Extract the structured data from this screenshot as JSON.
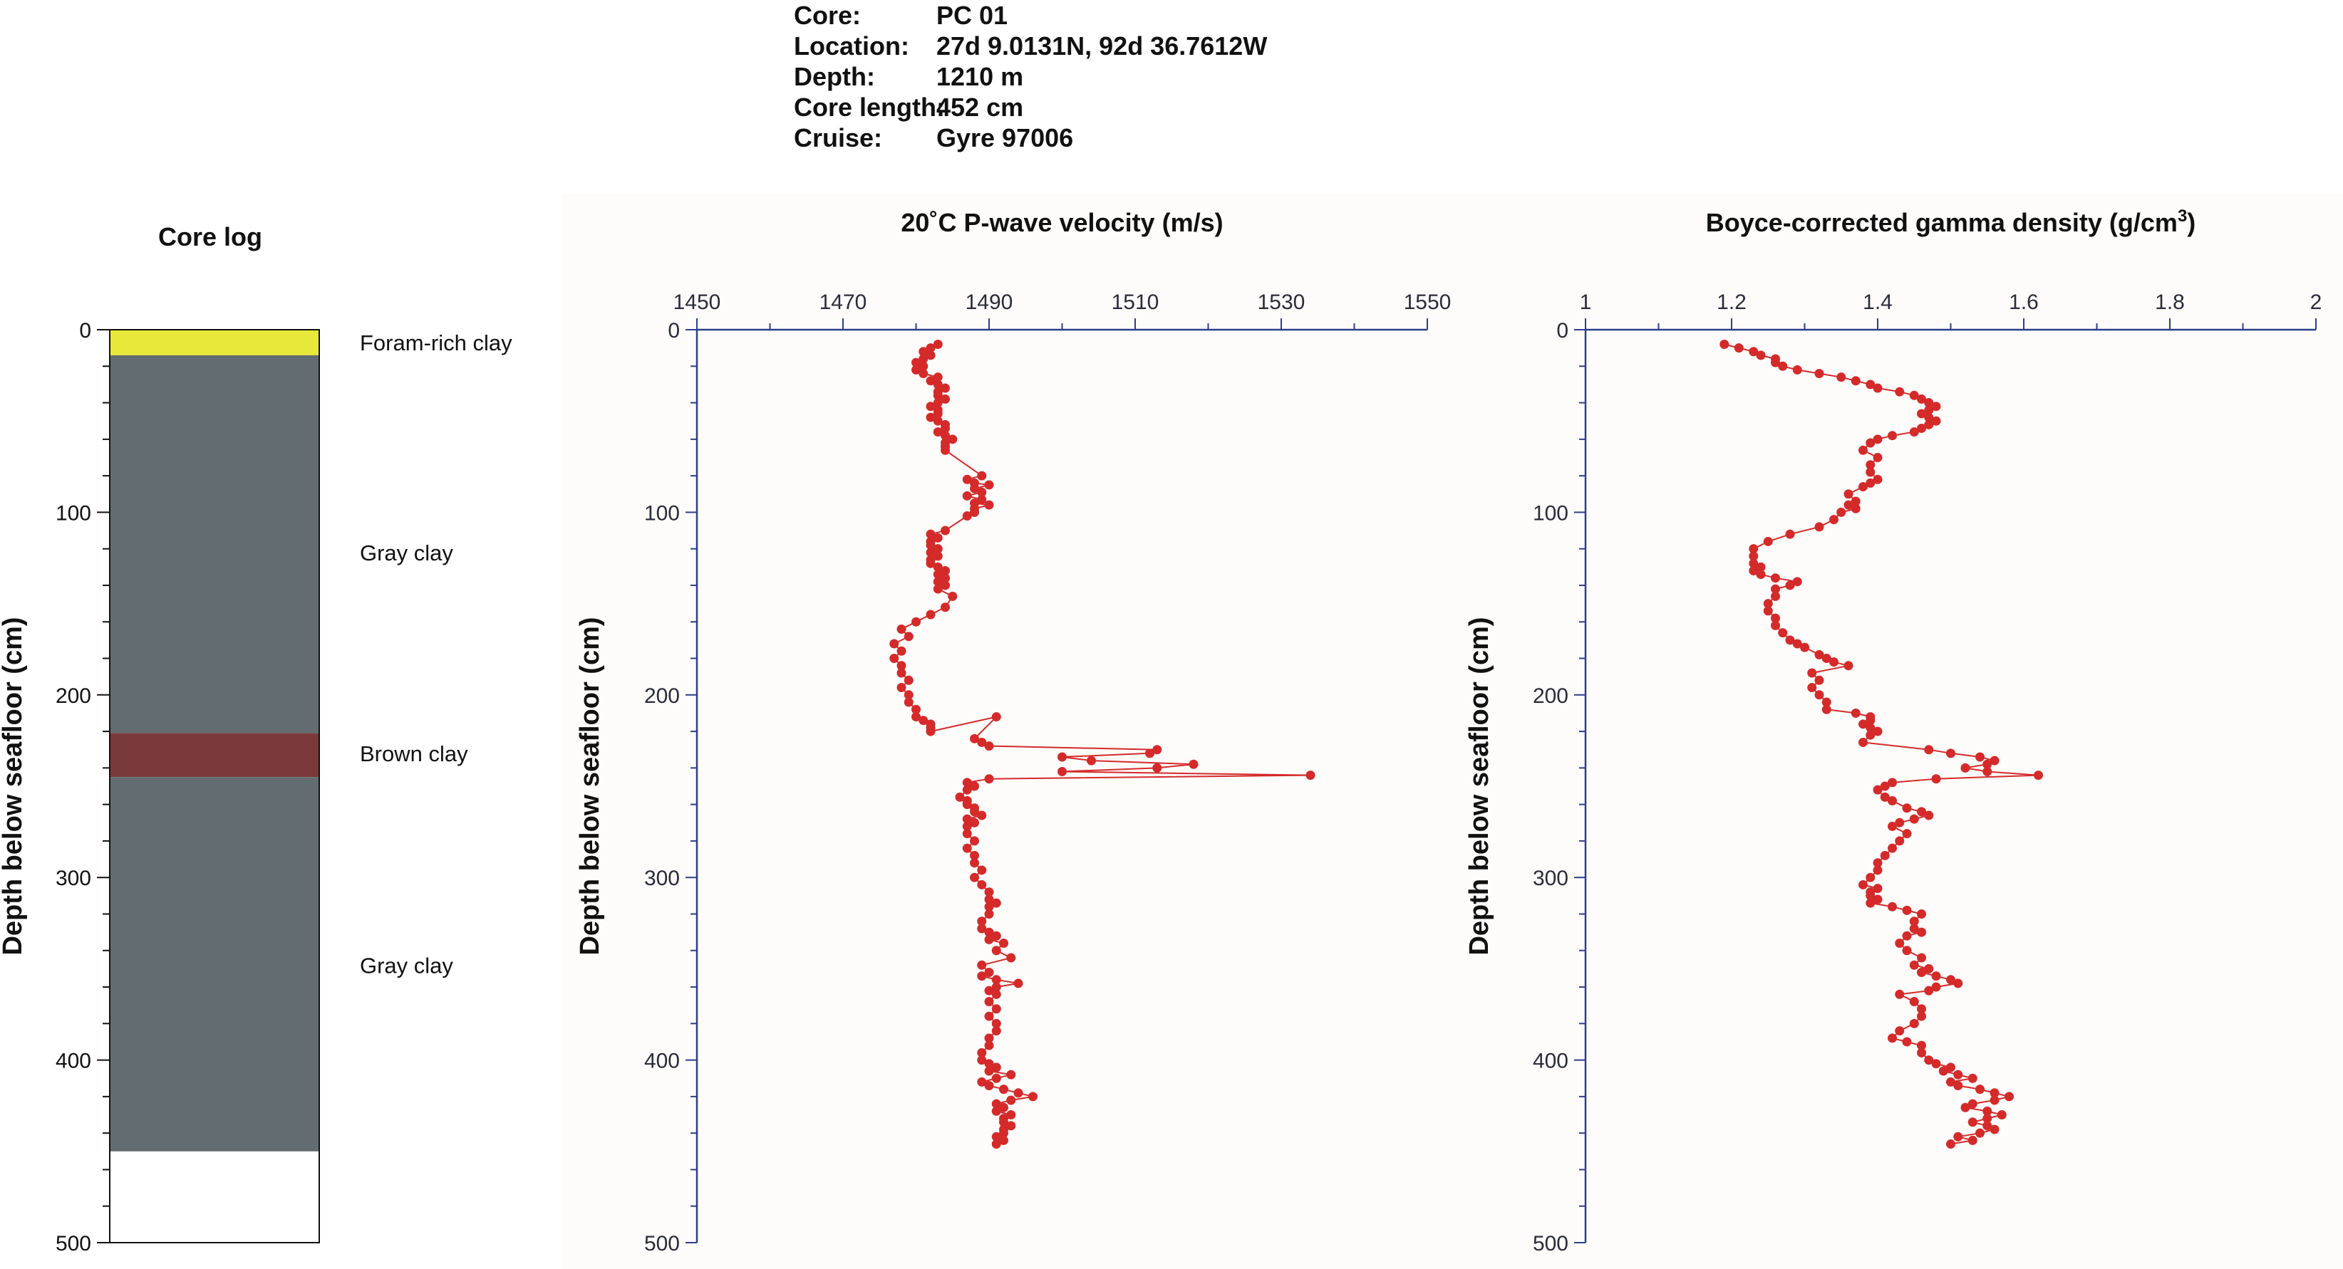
{
  "header": {
    "rows": [
      {
        "key": "Core:",
        "value": "PC 01"
      },
      {
        "key": "Location:",
        "value": "27d 9.0131N, 92d 36.7612W"
      },
      {
        "key": "Depth:",
        "value": "1210 m"
      },
      {
        "key": "Core length:",
        "value": "452 cm"
      },
      {
        "key": "Cruise:",
        "value": "Gyre 97006"
      }
    ]
  },
  "chart_data": [
    {
      "type": "table",
      "title": "Core log",
      "ylabel": "Depth below seafloor (cm)",
      "ylim": [
        0,
        500
      ],
      "yticks": [
        "0",
        "100",
        "200",
        "300",
        "400",
        "500"
      ],
      "units": [
        {
          "name": "Foram-rich clay",
          "top": 0,
          "bottom": 14,
          "color": "#e8e83a"
        },
        {
          "name": "Gray clay",
          "top": 14,
          "bottom": 221,
          "color": "#636c70"
        },
        {
          "name": "Brown clay",
          "top": 221,
          "bottom": 245,
          "color": "#7a3a3c"
        },
        {
          "name": "Gray clay",
          "top": 245,
          "bottom": 450,
          "color": "#636c70"
        }
      ],
      "unit_labels": [
        {
          "text": "Foram-rich clay",
          "depth": 7
        },
        {
          "text": "Gray clay",
          "depth": 122
        },
        {
          "text": "Brown clay",
          "depth": 232
        },
        {
          "text": "Gray clay",
          "depth": 348
        }
      ]
    },
    {
      "type": "line",
      "title": "20˚C P-wave velocity (m/s)",
      "ylabel": "Depth below seafloor (cm)",
      "xlim": [
        1450,
        1550
      ],
      "ylim": [
        0,
        500
      ],
      "xticks": [
        "1450",
        "1470",
        "1490",
        "1510",
        "1530",
        "1550"
      ],
      "yticks": [
        "0",
        "100",
        "200",
        "300",
        "400",
        "500"
      ],
      "color": "#d42a2a",
      "points": [
        [
          1483,
          8
        ],
        [
          1482,
          10
        ],
        [
          1481,
          12
        ],
        [
          1482,
          14
        ],
        [
          1481,
          16
        ],
        [
          1480,
          18
        ],
        [
          1481,
          20
        ],
        [
          1480,
          22
        ],
        [
          1481,
          24
        ],
        [
          1483,
          26
        ],
        [
          1482,
          28
        ],
        [
          1483,
          30
        ],
        [
          1484,
          32
        ],
        [
          1483,
          34
        ],
        [
          1483,
          36
        ],
        [
          1484,
          38
        ],
        [
          1483,
          40
        ],
        [
          1482,
          42
        ],
        [
          1483,
          44
        ],
        [
          1483,
          46
        ],
        [
          1482,
          48
        ],
        [
          1483,
          50
        ],
        [
          1484,
          52
        ],
        [
          1484,
          54
        ],
        [
          1483,
          56
        ],
        [
          1484,
          58
        ],
        [
          1485,
          60
        ],
        [
          1484,
          62
        ],
        [
          1484,
          64
        ],
        [
          1484,
          66
        ],
        [
          1489,
          80
        ],
        [
          1487,
          82
        ],
        [
          1488,
          84
        ],
        [
          1490,
          85
        ],
        [
          1488,
          87
        ],
        [
          1489,
          89
        ],
        [
          1487,
          91
        ],
        [
          1489,
          93
        ],
        [
          1488,
          95
        ],
        [
          1490,
          96
        ],
        [
          1488,
          98
        ],
        [
          1488,
          100
        ],
        [
          1487,
          102
        ],
        [
          1484,
          110
        ],
        [
          1482,
          112
        ],
        [
          1483,
          114
        ],
        [
          1482,
          116
        ],
        [
          1482,
          118
        ],
        [
          1483,
          120
        ],
        [
          1482,
          122
        ],
        [
          1483,
          124
        ],
        [
          1482,
          126
        ],
        [
          1482,
          128
        ],
        [
          1483,
          130
        ],
        [
          1484,
          132
        ],
        [
          1483,
          134
        ],
        [
          1484,
          136
        ],
        [
          1483,
          138
        ],
        [
          1484,
          140
        ],
        [
          1483,
          142
        ],
        [
          1485,
          146
        ],
        [
          1484,
          152
        ],
        [
          1482,
          156
        ],
        [
          1480,
          160
        ],
        [
          1478,
          164
        ],
        [
          1479,
          168
        ],
        [
          1477,
          172
        ],
        [
          1478,
          176
        ],
        [
          1477,
          180
        ],
        [
          1478,
          184
        ],
        [
          1478,
          188
        ],
        [
          1479,
          192
        ],
        [
          1478,
          196
        ],
        [
          1479,
          200
        ],
        [
          1479,
          204
        ],
        [
          1480,
          208
        ],
        [
          1480,
          212
        ],
        [
          1481,
          214
        ],
        [
          1482,
          216
        ],
        [
          1482,
          218
        ],
        [
          1482,
          220
        ],
        [
          1491,
          212
        ],
        [
          1488,
          224
        ],
        [
          1489,
          226
        ],
        [
          1490,
          228
        ],
        [
          1513,
          230
        ],
        [
          1512,
          232
        ],
        [
          1500,
          234
        ],
        [
          1504,
          236
        ],
        [
          1518,
          238
        ],
        [
          1513,
          240
        ],
        [
          1500,
          242
        ],
        [
          1534,
          244
        ],
        [
          1490,
          246
        ],
        [
          1487,
          248
        ],
        [
          1488,
          250
        ],
        [
          1487,
          252
        ],
        [
          1486,
          256
        ],
        [
          1487,
          258
        ],
        [
          1487,
          260
        ],
        [
          1488,
          262
        ],
        [
          1488,
          264
        ],
        [
          1489,
          266
        ],
        [
          1487,
          268
        ],
        [
          1488,
          270
        ],
        [
          1487,
          272
        ],
        [
          1487,
          276
        ],
        [
          1488,
          280
        ],
        [
          1487,
          284
        ],
        [
          1488,
          288
        ],
        [
          1488,
          292
        ],
        [
          1489,
          296
        ],
        [
          1488,
          300
        ],
        [
          1489,
          304
        ],
        [
          1490,
          308
        ],
        [
          1490,
          312
        ],
        [
          1491,
          314
        ],
        [
          1490,
          316
        ],
        [
          1490,
          320
        ],
        [
          1489,
          324
        ],
        [
          1489,
          328
        ],
        [
          1490,
          330
        ],
        [
          1491,
          332
        ],
        [
          1490,
          334
        ],
        [
          1492,
          336
        ],
        [
          1491,
          340
        ],
        [
          1493,
          344
        ],
        [
          1489,
          348
        ],
        [
          1490,
          352
        ],
        [
          1489,
          354
        ],
        [
          1491,
          356
        ],
        [
          1494,
          358
        ],
        [
          1491,
          360
        ],
        [
          1490,
          362
        ],
        [
          1491,
          364
        ],
        [
          1490,
          368
        ],
        [
          1491,
          372
        ],
        [
          1490,
          376
        ],
        [
          1491,
          380
        ],
        [
          1491,
          384
        ],
        [
          1490,
          388
        ],
        [
          1490,
          392
        ],
        [
          1489,
          396
        ],
        [
          1489,
          400
        ],
        [
          1490,
          402
        ],
        [
          1491,
          404
        ],
        [
          1490,
          406
        ],
        [
          1493,
          408
        ],
        [
          1491,
          410
        ],
        [
          1489,
          412
        ],
        [
          1490,
          414
        ],
        [
          1492,
          416
        ],
        [
          1494,
          418
        ],
        [
          1496,
          420
        ],
        [
          1493,
          422
        ],
        [
          1491,
          424
        ],
        [
          1492,
          426
        ],
        [
          1491,
          428
        ],
        [
          1493,
          430
        ],
        [
          1492,
          432
        ],
        [
          1492,
          434
        ],
        [
          1493,
          436
        ],
        [
          1492,
          438
        ],
        [
          1492,
          440
        ],
        [
          1491,
          442
        ],
        [
          1492,
          444
        ],
        [
          1491,
          446
        ]
      ]
    },
    {
      "type": "line",
      "title": "Boyce-corrected gamma density (g/cm",
      "title_sup": "3",
      "title_end": ")",
      "ylabel": "Depth below seafloor (cm)",
      "xlim": [
        1,
        2
      ],
      "ylim": [
        0,
        500
      ],
      "xticks": [
        "1",
        "1.2",
        "1.4",
        "1.6",
        "1.8",
        "2"
      ],
      "yticks": [
        "0",
        "100",
        "200",
        "300",
        "400",
        "500"
      ],
      "color": "#d42a2a",
      "points": [
        [
          1.19,
          8
        ],
        [
          1.21,
          10
        ],
        [
          1.23,
          12
        ],
        [
          1.24,
          14
        ],
        [
          1.26,
          16
        ],
        [
          1.26,
          18
        ],
        [
          1.27,
          20
        ],
        [
          1.29,
          22
        ],
        [
          1.32,
          24
        ],
        [
          1.35,
          26
        ],
        [
          1.37,
          28
        ],
        [
          1.39,
          30
        ],
        [
          1.4,
          32
        ],
        [
          1.43,
          34
        ],
        [
          1.45,
          36
        ],
        [
          1.46,
          38
        ],
        [
          1.47,
          40
        ],
        [
          1.48,
          42
        ],
        [
          1.47,
          44
        ],
        [
          1.46,
          46
        ],
        [
          1.47,
          48
        ],
        [
          1.48,
          50
        ],
        [
          1.47,
          52
        ],
        [
          1.46,
          54
        ],
        [
          1.45,
          56
        ],
        [
          1.42,
          58
        ],
        [
          1.4,
          60
        ],
        [
          1.39,
          62
        ],
        [
          1.38,
          66
        ],
        [
          1.4,
          70
        ],
        [
          1.39,
          74
        ],
        [
          1.39,
          78
        ],
        [
          1.4,
          82
        ],
        [
          1.39,
          84
        ],
        [
          1.38,
          86
        ],
        [
          1.36,
          90
        ],
        [
          1.37,
          94
        ],
        [
          1.36,
          96
        ],
        [
          1.37,
          98
        ],
        [
          1.35,
          100
        ],
        [
          1.34,
          104
        ],
        [
          1.32,
          108
        ],
        [
          1.28,
          112
        ],
        [
          1.25,
          116
        ],
        [
          1.23,
          120
        ],
        [
          1.23,
          124
        ],
        [
          1.23,
          128
        ],
        [
          1.24,
          130
        ],
        [
          1.23,
          132
        ],
        [
          1.24,
          134
        ],
        [
          1.26,
          136
        ],
        [
          1.29,
          138
        ],
        [
          1.28,
          140
        ],
        [
          1.26,
          142
        ],
        [
          1.26,
          146
        ],
        [
          1.25,
          150
        ],
        [
          1.25,
          154
        ],
        [
          1.26,
          158
        ],
        [
          1.26,
          162
        ],
        [
          1.27,
          166
        ],
        [
          1.28,
          170
        ],
        [
          1.29,
          172
        ],
        [
          1.3,
          174
        ],
        [
          1.32,
          178
        ],
        [
          1.33,
          180
        ],
        [
          1.34,
          182
        ],
        [
          1.36,
          184
        ],
        [
          1.31,
          188
        ],
        [
          1.32,
          192
        ],
        [
          1.31,
          196
        ],
        [
          1.32,
          200
        ],
        [
          1.33,
          204
        ],
        [
          1.33,
          208
        ],
        [
          1.37,
          210
        ],
        [
          1.39,
          212
        ],
        [
          1.39,
          214
        ],
        [
          1.38,
          216
        ],
        [
          1.39,
          218
        ],
        [
          1.4,
          220
        ],
        [
          1.39,
          222
        ],
        [
          1.38,
          226
        ],
        [
          1.47,
          230
        ],
        [
          1.5,
          232
        ],
        [
          1.54,
          234
        ],
        [
          1.56,
          236
        ],
        [
          1.55,
          238
        ],
        [
          1.52,
          240
        ],
        [
          1.55,
          242
        ],
        [
          1.62,
          244
        ],
        [
          1.48,
          246
        ],
        [
          1.42,
          248
        ],
        [
          1.41,
          250
        ],
        [
          1.4,
          252
        ],
        [
          1.41,
          256
        ],
        [
          1.42,
          258
        ],
        [
          1.44,
          262
        ],
        [
          1.46,
          264
        ],
        [
          1.47,
          266
        ],
        [
          1.45,
          268
        ],
        [
          1.43,
          270
        ],
        [
          1.42,
          272
        ],
        [
          1.44,
          276
        ],
        [
          1.43,
          280
        ],
        [
          1.42,
          284
        ],
        [
          1.41,
          288
        ],
        [
          1.4,
          292
        ],
        [
          1.4,
          296
        ],
        [
          1.39,
          300
        ],
        [
          1.38,
          304
        ],
        [
          1.4,
          306
        ],
        [
          1.39,
          308
        ],
        [
          1.39,
          310
        ],
        [
          1.4,
          312
        ],
        [
          1.39,
          314
        ],
        [
          1.42,
          316
        ],
        [
          1.44,
          318
        ],
        [
          1.46,
          320
        ],
        [
          1.45,
          324
        ],
        [
          1.45,
          328
        ],
        [
          1.46,
          330
        ],
        [
          1.44,
          332
        ],
        [
          1.43,
          336
        ],
        [
          1.44,
          340
        ],
        [
          1.46,
          344
        ],
        [
          1.45,
          348
        ],
        [
          1.47,
          350
        ],
        [
          1.46,
          352
        ],
        [
          1.48,
          354
        ],
        [
          1.5,
          356
        ],
        [
          1.51,
          358
        ],
        [
          1.48,
          360
        ],
        [
          1.47,
          362
        ],
        [
          1.43,
          364
        ],
        [
          1.45,
          368
        ],
        [
          1.46,
          372
        ],
        [
          1.46,
          376
        ],
        [
          1.45,
          380
        ],
        [
          1.43,
          384
        ],
        [
          1.42,
          388
        ],
        [
          1.44,
          390
        ],
        [
          1.46,
          392
        ],
        [
          1.46,
          396
        ],
        [
          1.47,
          400
        ],
        [
          1.48,
          402
        ],
        [
          1.5,
          404
        ],
        [
          1.49,
          406
        ],
        [
          1.51,
          408
        ],
        [
          1.53,
          410
        ],
        [
          1.5,
          412
        ],
        [
          1.51,
          414
        ],
        [
          1.54,
          416
        ],
        [
          1.56,
          418
        ],
        [
          1.58,
          420
        ],
        [
          1.56,
          422
        ],
        [
          1.53,
          424
        ],
        [
          1.52,
          426
        ],
        [
          1.55,
          428
        ],
        [
          1.57,
          430
        ],
        [
          1.55,
          432
        ],
        [
          1.53,
          434
        ],
        [
          1.55,
          436
        ],
        [
          1.56,
          438
        ],
        [
          1.54,
          440
        ],
        [
          1.51,
          442
        ],
        [
          1.53,
          444
        ],
        [
          1.5,
          446
        ]
      ]
    }
  ]
}
